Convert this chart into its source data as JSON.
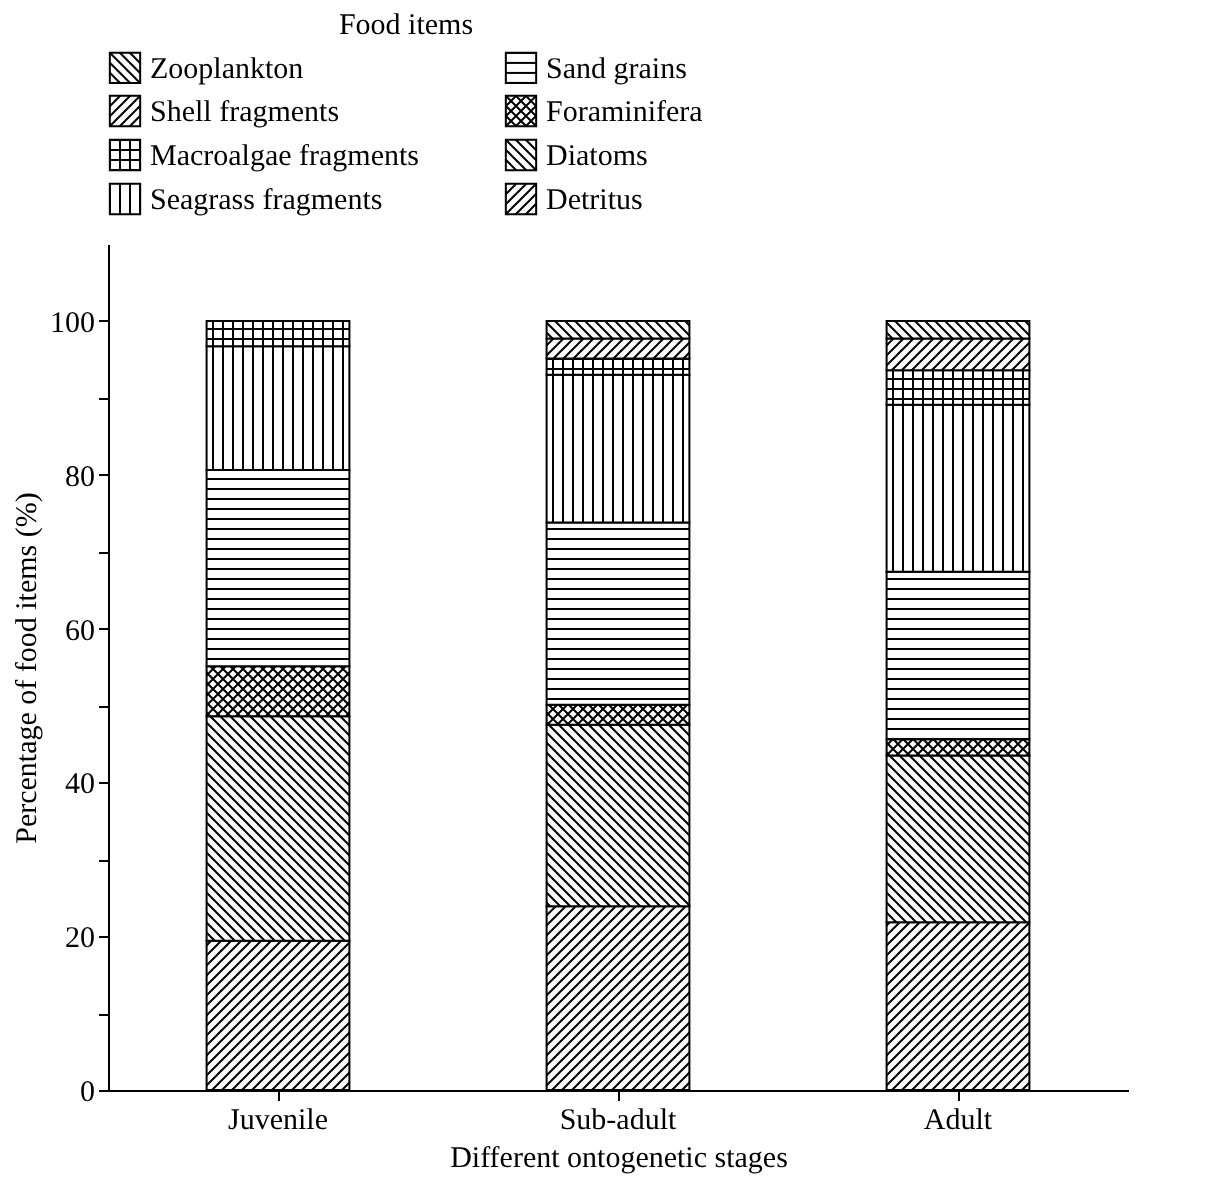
{
  "chart_data": {
    "type": "bar",
    "stacked": true,
    "xlabel": "Different ontogenetic stages",
    "ylabel": "Percentage of food items (%)",
    "legend_title": "Food items",
    "legend": "top",
    "grid": false,
    "categories": [
      "Juvenile",
      "Sub-adult",
      "Adult"
    ],
    "ylim": [
      0,
      110
    ],
    "yticks": [
      0,
      {
        "value": 10,
        "label": null
      },
      20,
      {
        "value": 30,
        "label": null
      },
      40,
      {
        "value": 50,
        "label": null
      },
      60,
      {
        "value": 70,
        "label": null
      },
      80,
      {
        "value": 90,
        "label": null
      },
      100
    ],
    "series": [
      {
        "name": "Detritus",
        "color": "#000000",
        "values": [
          19.4,
          23.9,
          21.8
        ]
      },
      {
        "name": "Diatoms",
        "color": "#000000",
        "values": [
          29.2,
          23.6,
          21.7
        ]
      },
      {
        "name": "Foraminifera",
        "color": "#000000",
        "values": [
          6.5,
          2.6,
          2.1
        ]
      },
      {
        "name": "Sand grains",
        "color": "#000000",
        "values": [
          25.5,
          23.7,
          21.8
        ]
      },
      {
        "name": "Seagrass fragments",
        "color": "#000000",
        "values": [
          16.1,
          19.2,
          21.7
        ]
      },
      {
        "name": "Macroalgae fragments",
        "color": "#000000",
        "values": [
          3.3,
          2.1,
          4.5
        ]
      },
      {
        "name": "Shell fragments",
        "color": "#000000",
        "values": [
          0,
          2.6,
          4.1
        ]
      },
      {
        "name": "Zooplankton",
        "color": "#000000",
        "values": [
          0,
          2.3,
          2.3
        ]
      }
    ]
  }
}
